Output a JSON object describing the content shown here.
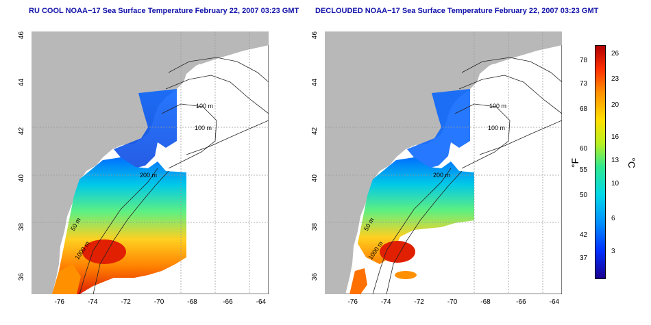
{
  "titles": {
    "left": "RU COOL NOAA−17 Sea Surface Temperature February 22, 2007 03:23 GMT",
    "right": "DECLOUDED NOAA−17 Sea Surface Temperature February 22, 2007 03:23 GMT"
  },
  "map": {
    "lon_range": [
      -77.2,
      -63.0
    ],
    "lat_range": [
      35.0,
      46.0
    ],
    "x_ticks": [
      "-76",
      "-74",
      "-72",
      "-70",
      "-68",
      "-66",
      "-64"
    ],
    "y_ticks": [
      "36",
      "38",
      "40",
      "42",
      "44",
      "46"
    ],
    "contour_labels": [
      "100 m",
      "100 m",
      "200 m",
      "50 m",
      "1000 m",
      "200 m"
    ]
  },
  "colorbar": {
    "fahrenheit_ticks": [
      "78",
      "73",
      "68",
      "60",
      "55",
      "50",
      "42",
      "37"
    ],
    "celsius_ticks": [
      "26",
      "23",
      "20",
      "16",
      "13",
      "10",
      "6",
      "3"
    ],
    "unit_f": "°F",
    "unit_c": "°C",
    "colors": [
      "#1a0090",
      "#0030ff",
      "#0090ff",
      "#00d8e8",
      "#30e890",
      "#b8f020",
      "#ffe000",
      "#ff9000",
      "#ff3000",
      "#b00000"
    ]
  }
}
